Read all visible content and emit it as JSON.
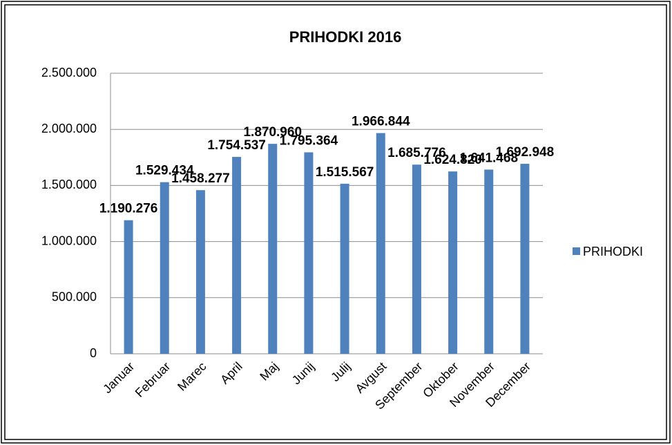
{
  "chart_data": {
    "type": "bar",
    "title": "PRIHODKI 2016",
    "categories": [
      "Januar",
      "Februar",
      "Marec",
      "April",
      "Maj",
      "Junij",
      "Julij",
      "Avgust",
      "September",
      "Oktober",
      "November",
      "December"
    ],
    "series": [
      {
        "name": "PRIHODKI",
        "color": "#4f81bd",
        "values": [
          1190276,
          1529434,
          1458277,
          1754537,
          1870960,
          1795364,
          1515567,
          1966844,
          1685776,
          1624820,
          1641468,
          1692948
        ],
        "value_labels": [
          "1.190.276",
          "1.529.434",
          "1.458.277",
          "1.754.537",
          "1.870.960",
          "1.795.364",
          "1.515.567",
          "1.966.844",
          "1.685.776",
          "1.624.820",
          "1.641.468",
          "1.692.948"
        ]
      }
    ],
    "ylim": [
      0,
      2500000
    ],
    "yticks": [
      {
        "value": 0,
        "label": "0"
      },
      {
        "value": 500000,
        "label": "500.000"
      },
      {
        "value": 1000000,
        "label": "1.000.000"
      },
      {
        "value": 1500000,
        "label": "1.500.000"
      },
      {
        "value": 2000000,
        "label": "2.000.000"
      },
      {
        "value": 2500000,
        "label": "2.500.000"
      }
    ],
    "grid": true,
    "legend": "right"
  }
}
